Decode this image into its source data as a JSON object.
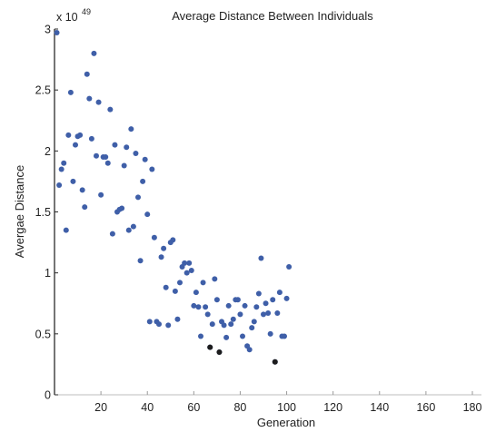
{
  "chart_data": {
    "type": "scatter",
    "title": "Average Distance Between Individuals",
    "xlabel": "Generation",
    "ylabel": "Avergae Distance",
    "y_exponent_base": "x 10",
    "y_exponent": "49",
    "xlim": [
      0,
      180
    ],
    "ylim": [
      0,
      3
    ],
    "xticks": [
      20,
      40,
      60,
      80,
      100,
      120,
      140,
      160,
      180
    ],
    "yticks": [
      0,
      0.5,
      1,
      1.5,
      2,
      2.5,
      3
    ],
    "ytick_labels": [
      "0",
      "0.5",
      "1",
      "1.5",
      "2",
      "2.5",
      "3"
    ],
    "grid": false,
    "marker_color": "#3f5fa8",
    "highlight_color": "#1c1c1c",
    "points": [
      [
        1,
        2.97
      ],
      [
        2,
        1.72
      ],
      [
        3,
        1.85
      ],
      [
        4,
        1.9
      ],
      [
        5,
        1.35
      ],
      [
        6,
        2.13
      ],
      [
        7,
        2.48
      ],
      [
        8,
        1.75
      ],
      [
        9,
        2.05
      ],
      [
        10,
        2.12
      ],
      [
        11,
        2.13
      ],
      [
        12,
        1.68
      ],
      [
        13,
        1.54
      ],
      [
        14,
        2.63
      ],
      [
        15,
        2.43
      ],
      [
        16,
        2.1
      ],
      [
        17,
        2.8
      ],
      [
        18,
        1.96
      ],
      [
        19,
        2.4
      ],
      [
        20,
        1.64
      ],
      [
        21,
        1.95
      ],
      [
        22,
        1.95
      ],
      [
        23,
        1.9
      ],
      [
        24,
        2.34
      ],
      [
        25,
        1.32
      ],
      [
        26,
        2.05
      ],
      [
        27,
        1.5
      ],
      [
        28,
        1.52
      ],
      [
        29,
        1.53
      ],
      [
        30,
        1.88
      ],
      [
        31,
        2.03
      ],
      [
        32,
        1.35
      ],
      [
        33,
        2.18
      ],
      [
        34,
        1.38
      ],
      [
        35,
        1.98
      ],
      [
        36,
        1.62
      ],
      [
        37,
        1.1
      ],
      [
        38,
        1.75
      ],
      [
        39,
        1.93
      ],
      [
        40,
        1.48
      ],
      [
        41,
        0.6
      ],
      [
        42,
        1.85
      ],
      [
        43,
        1.29
      ],
      [
        44,
        0.6
      ],
      [
        45,
        0.58
      ],
      [
        46,
        1.13
      ],
      [
        47,
        1.2
      ],
      [
        48,
        0.88
      ],
      [
        49,
        0.57
      ],
      [
        50,
        1.25
      ],
      [
        51,
        1.27
      ],
      [
        52,
        0.85
      ],
      [
        53,
        0.62
      ],
      [
        54,
        0.92
      ],
      [
        55,
        1.05
      ],
      [
        56,
        1.08
      ],
      [
        57,
        1.0
      ],
      [
        58,
        1.08
      ],
      [
        59,
        1.02
      ],
      [
        60,
        0.73
      ],
      [
        61,
        0.84
      ],
      [
        62,
        0.72
      ],
      [
        63,
        0.48
      ],
      [
        64,
        0.92
      ],
      [
        65,
        0.72
      ],
      [
        66,
        0.66
      ],
      [
        67,
        0.39
      ],
      [
        68,
        0.58
      ],
      [
        69,
        0.95
      ],
      [
        70,
        0.78
      ],
      [
        71,
        0.35
      ],
      [
        72,
        0.6
      ],
      [
        73,
        0.57
      ],
      [
        74,
        0.47
      ],
      [
        75,
        0.73
      ],
      [
        76,
        0.58
      ],
      [
        77,
        0.62
      ],
      [
        78,
        0.78
      ],
      [
        79,
        0.78
      ],
      [
        80,
        0.66
      ],
      [
        81,
        0.48
      ],
      [
        82,
        0.73
      ],
      [
        83,
        0.4
      ],
      [
        84,
        0.37
      ],
      [
        85,
        0.55
      ],
      [
        86,
        0.6
      ],
      [
        87,
        0.72
      ],
      [
        88,
        0.83
      ],
      [
        89,
        1.12
      ],
      [
        90,
        0.66
      ],
      [
        91,
        0.75
      ],
      [
        92,
        0.67
      ],
      [
        93,
        0.5
      ],
      [
        94,
        0.78
      ],
      [
        95,
        0.27
      ],
      [
        96,
        0.67
      ],
      [
        97,
        0.84
      ],
      [
        98,
        0.48
      ],
      [
        99,
        0.48
      ],
      [
        100,
        0.79
      ],
      [
        101,
        1.05
      ]
    ],
    "highlight_points": [
      [
        67,
        0.39
      ],
      [
        71,
        0.35
      ],
      [
        95,
        0.27
      ]
    ]
  }
}
